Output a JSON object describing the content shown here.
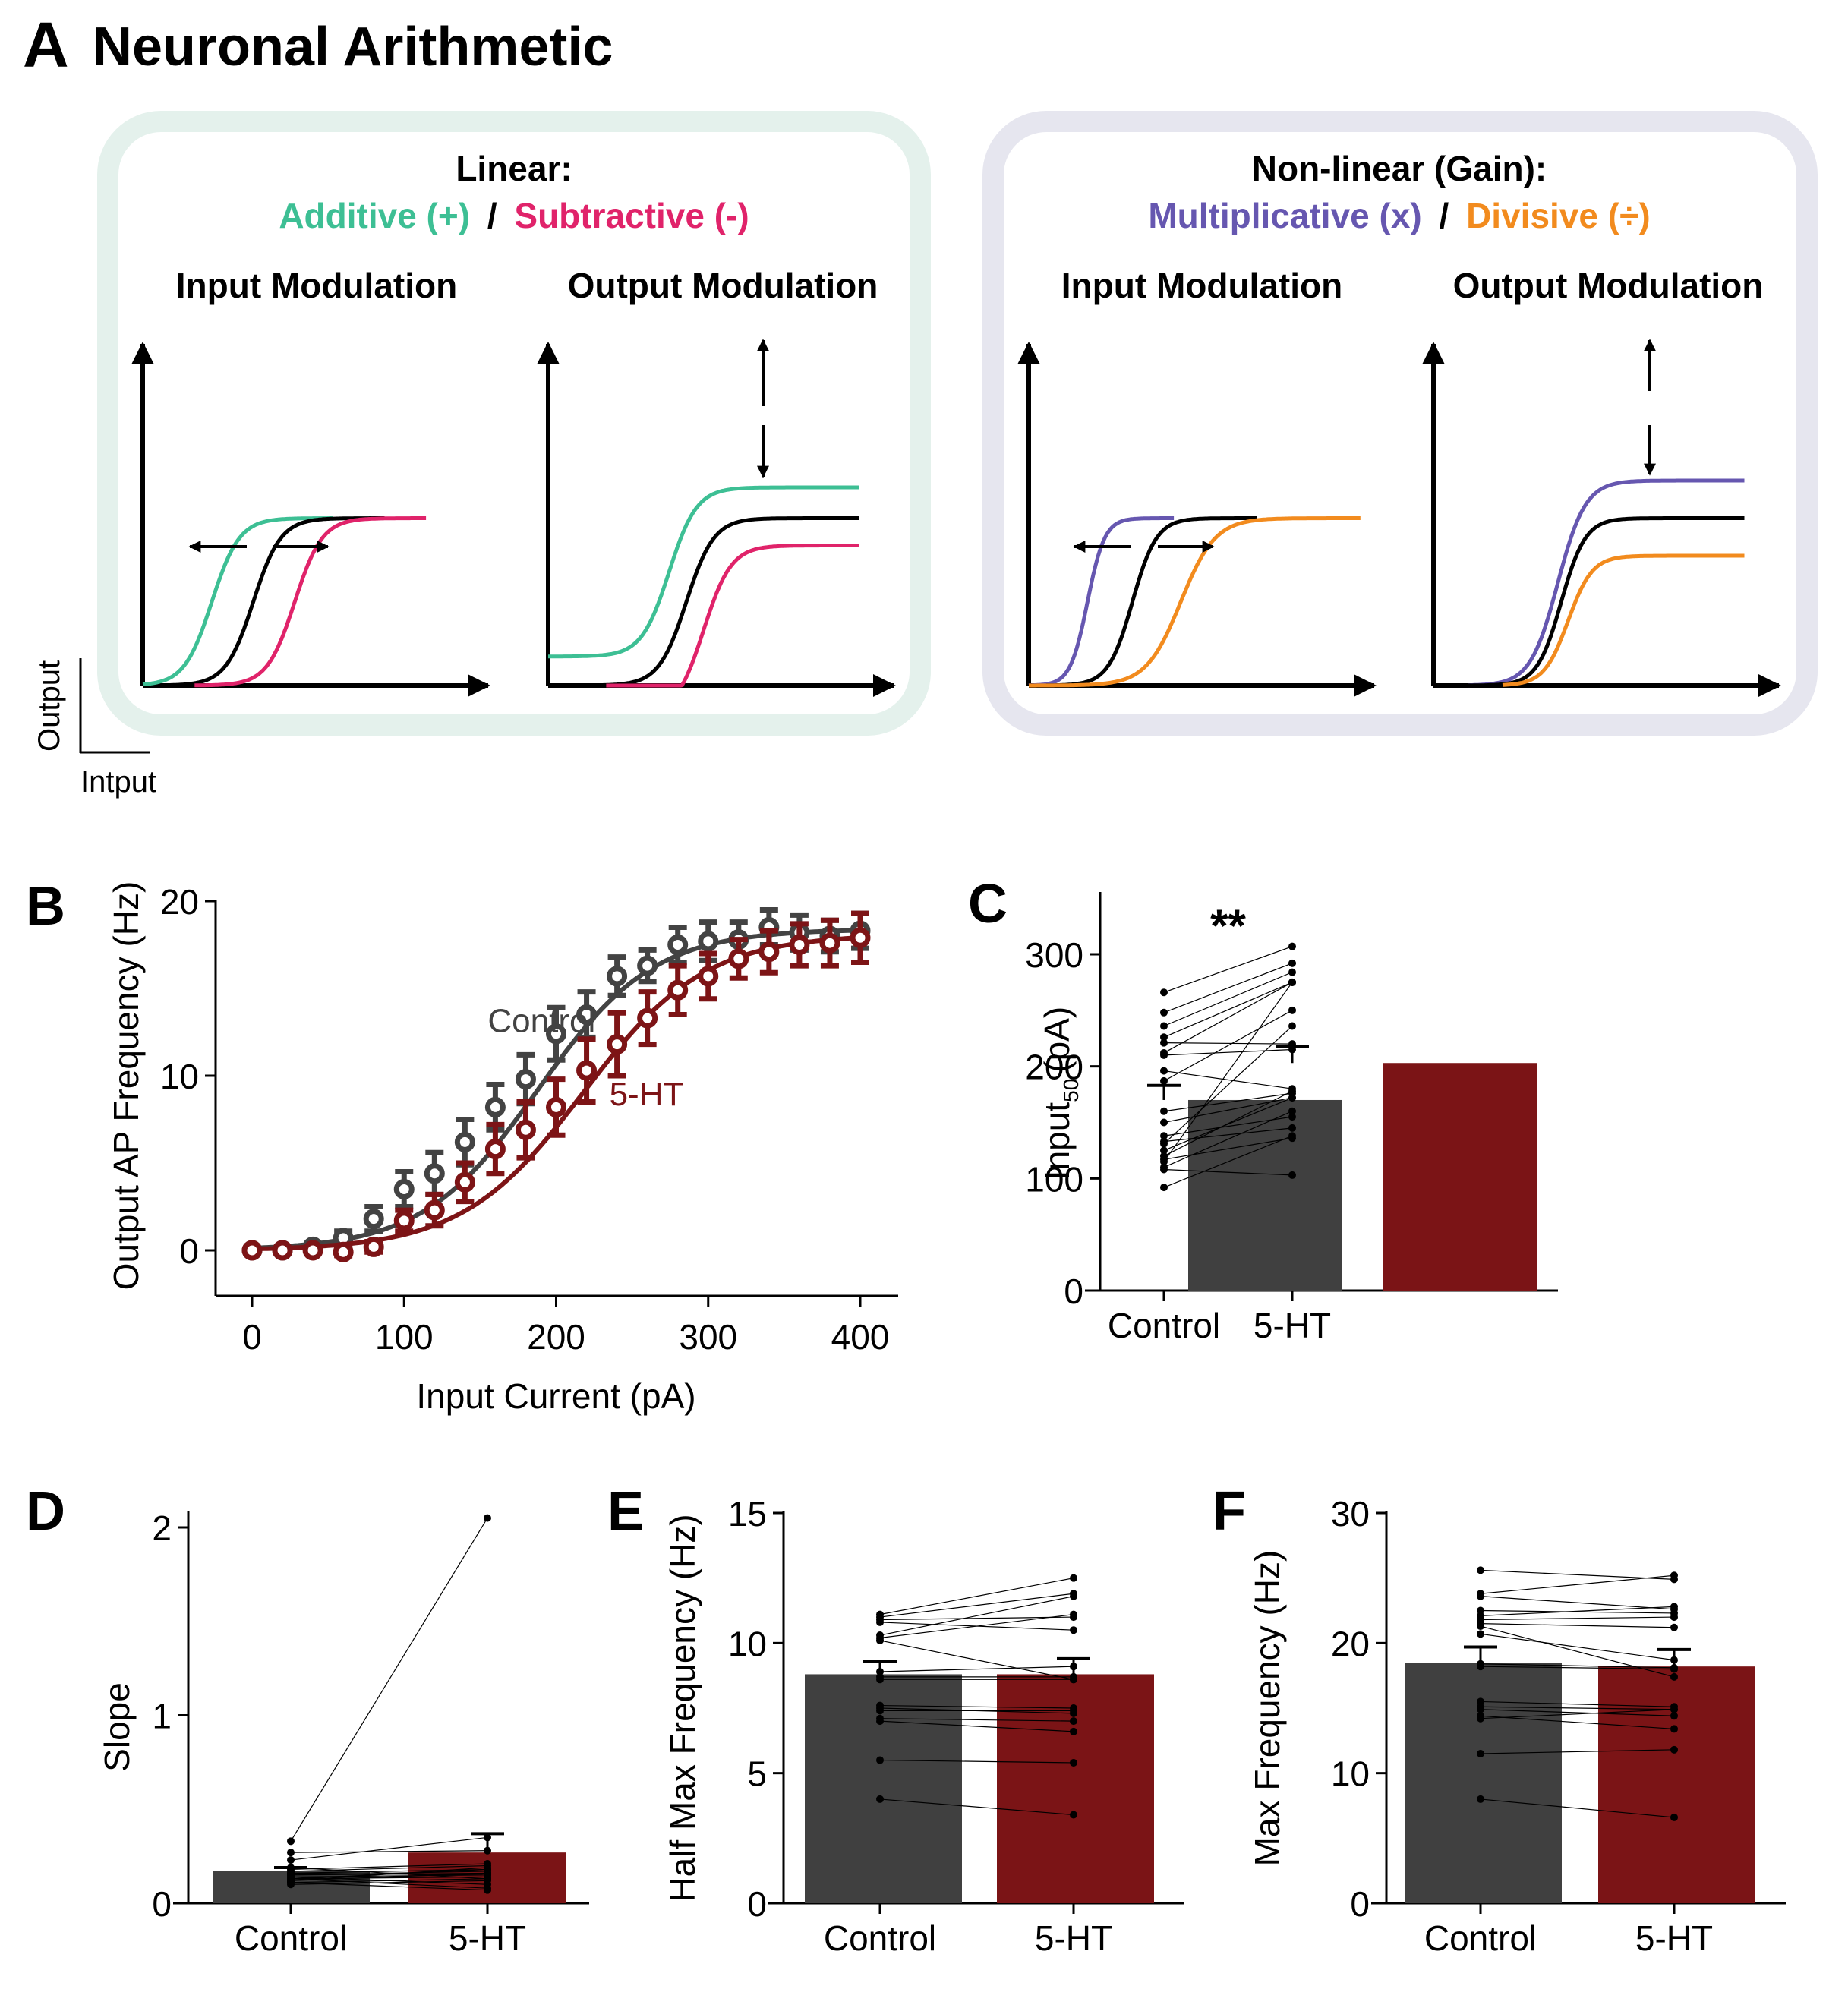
{
  "figure": {
    "panel_a": {
      "letter": "A",
      "title": "Neuronal Arithmetic",
      "scale_bar": {
        "ylabel": "Output",
        "xlabel": "Intput"
      },
      "linear_box": {
        "heading": "Linear:",
        "additive_label": "Additive (+)",
        "separator": "/",
        "subtractive_label": "Subtractive (-)",
        "input_title": "Input Modulation",
        "output_title": "Output Modulation",
        "colors": {
          "additive": "#3dbf94",
          "subtractive": "#e0236a",
          "baseline": "#000000",
          "box": "#e4f1ec"
        }
      },
      "gain_box": {
        "heading": "Non-linear (Gain):",
        "multiplicative_label": "Multiplicative (x)",
        "separator": "/",
        "divisive_label": "Divisive (÷)",
        "input_title": "Input Modulation",
        "output_title": "Output Modulation",
        "colors": {
          "multiplicative": "#6657b0",
          "divisive": "#f28b1e",
          "baseline": "#000000",
          "box": "#e6e6ef"
        }
      }
    }
  },
  "chart_data": [
    {
      "panel": "B",
      "type": "line",
      "title": "",
      "xlabel": "Input Current (pA)",
      "ylabel": "Output AP Frequency (Hz)",
      "xlim": [
        -20,
        425
      ],
      "ylim": [
        -2,
        20
      ],
      "xticks": [
        0,
        100,
        200,
        300,
        400
      ],
      "yticks": [
        0,
        10,
        20
      ],
      "grid": false,
      "legend": "inline labels",
      "x": [
        0,
        20,
        40,
        60,
        80,
        100,
        120,
        140,
        160,
        180,
        200,
        220,
        240,
        260,
        280,
        300,
        320,
        340,
        360,
        380,
        400
      ],
      "series": [
        {
          "name": "Control",
          "color": "#434343",
          "values": [
            0,
            0,
            0.2,
            0.7,
            1.8,
            3.5,
            4.4,
            6.2,
            8.2,
            9.8,
            12.4,
            13.5,
            15.7,
            16.3,
            17.5,
            17.7,
            17.8,
            18.5,
            18.2,
            18.0,
            18.3
          ],
          "errors": [
            0.1,
            0.1,
            0.2,
            0.4,
            0.7,
            1.0,
            1.2,
            1.3,
            1.3,
            1.4,
            1.5,
            1.3,
            1.1,
            0.9,
            1.0,
            1.1,
            1.0,
            1.0,
            1.0,
            0.9,
            1.0
          ],
          "label_position": {
            "x": 155,
            "y": 12.5
          }
        },
        {
          "name": "5-HT",
          "color": "#7d1416",
          "values": [
            0,
            0,
            0,
            -0.1,
            0.2,
            1.7,
            2.3,
            3.9,
            5.8,
            6.9,
            8.2,
            10.3,
            11.8,
            13.3,
            14.9,
            15.7,
            16.7,
            17.1,
            17.5,
            17.6,
            17.9
          ],
          "errors": [
            0.1,
            0.1,
            0.1,
            0.2,
            0.3,
            0.6,
            0.9,
            1.1,
            1.4,
            1.6,
            1.6,
            1.8,
            1.8,
            1.5,
            1.4,
            1.3,
            1.1,
            1.2,
            1.2,
            1.3,
            1.4
          ],
          "label_position": {
            "x": 235,
            "y": 8.3
          }
        }
      ],
      "fit": {
        "Control": {
          "max": 18.4,
          "x50": 188,
          "slope": 38
        },
        "5-HT": {
          "max": 18.1,
          "x50": 218,
          "slope": 40
        }
      }
    },
    {
      "panel": "C",
      "type": "bar",
      "ylabel": "Input50 (pA)",
      "ylabel_main": "Input",
      "ylabel_sub": "50",
      "ylabel_unit": "(pA)",
      "ylim": [
        0,
        350
      ],
      "yticks": [
        0,
        100,
        200,
        300
      ],
      "categories": [
        "Control",
        "5-HT"
      ],
      "values": [
        170,
        203
      ],
      "errors": [
        13,
        15
      ],
      "significance": "**",
      "pairs": [
        [
          266,
          307
        ],
        [
          248,
          292
        ],
        [
          236,
          284
        ],
        [
          226,
          275
        ],
        [
          221,
          220
        ],
        [
          212,
          275
        ],
        [
          210,
          215
        ],
        [
          196,
          180
        ],
        [
          187,
          250
        ],
        [
          160,
          176
        ],
        [
          150,
          172
        ],
        [
          138,
          155
        ],
        [
          133,
          145
        ],
        [
          131,
          236
        ],
        [
          117,
          136
        ],
        [
          115,
          275
        ],
        [
          110,
          160
        ],
        [
          108,
          103
        ],
        [
          92,
          138
        ],
        [
          120,
          178
        ],
        [
          125,
          172
        ]
      ]
    },
    {
      "panel": "D",
      "type": "bar",
      "ylabel": "Slope",
      "ylim": [
        0,
        2.1
      ],
      "yticks": [
        0,
        1,
        2
      ],
      "categories": [
        "Control",
        "5-HT"
      ],
      "values": [
        0.17,
        0.27
      ],
      "errors": [
        0.02,
        0.1
      ],
      "pairs": [
        [
          0.33,
          2.05
        ],
        [
          0.27,
          0.28
        ],
        [
          0.23,
          0.35
        ],
        [
          0.19,
          0.13
        ],
        [
          0.18,
          0.21
        ],
        [
          0.17,
          0.2
        ],
        [
          0.16,
          0.18
        ],
        [
          0.15,
          0.16
        ],
        [
          0.15,
          0.17
        ],
        [
          0.14,
          0.15
        ],
        [
          0.13,
          0.14
        ],
        [
          0.13,
          0.08
        ],
        [
          0.12,
          0.16
        ],
        [
          0.11,
          0.07
        ],
        [
          0.1,
          0.12
        ],
        [
          0.12,
          0.19
        ],
        [
          0.14,
          0.1
        ],
        [
          0.16,
          0.15
        ],
        [
          0.11,
          0.13
        ],
        [
          0.13,
          0.18
        ]
      ]
    },
    {
      "panel": "E",
      "type": "bar",
      "ylabel": "Half Max Frequency (Hz)",
      "ylim": [
        0,
        15
      ],
      "yticks": [
        0,
        5,
        10,
        15
      ],
      "categories": [
        "Control",
        "5-HT"
      ],
      "values": [
        8.8,
        8.8
      ],
      "errors": [
        0.5,
        0.6
      ],
      "pairs": [
        [
          11.1,
          12.5
        ],
        [
          11.0,
          11.9
        ],
        [
          10.9,
          11.0
        ],
        [
          10.8,
          10.5
        ],
        [
          10.3,
          11.8
        ],
        [
          10.2,
          11.1
        ],
        [
          10.1,
          8.6
        ],
        [
          8.9,
          9.1
        ],
        [
          8.7,
          8.7
        ],
        [
          8.6,
          8.6
        ],
        [
          7.6,
          7.5
        ],
        [
          7.5,
          7.3
        ],
        [
          7.4,
          7.4
        ],
        [
          7.0,
          6.6
        ],
        [
          7.1,
          7.0
        ],
        [
          5.5,
          5.4
        ],
        [
          4.0,
          3.4
        ]
      ]
    },
    {
      "panel": "F",
      "type": "bar",
      "ylabel": "Max Frequency (Hz)",
      "ylim": [
        0,
        30
      ],
      "yticks": [
        0,
        10,
        20,
        30
      ],
      "categories": [
        "Control",
        "5-HT"
      ],
      "values": [
        18.5,
        18.2
      ],
      "errors": [
        1.2,
        1.3
      ],
      "pairs": [
        [
          25.6,
          24.9
        ],
        [
          23.8,
          25.2
        ],
        [
          23.6,
          22.6
        ],
        [
          22.5,
          22.3
        ],
        [
          22.1,
          22.8
        ],
        [
          21.8,
          22.0
        ],
        [
          21.5,
          21.2
        ],
        [
          21.3,
          17.4
        ],
        [
          20.7,
          18.7
        ],
        [
          18.4,
          18.1
        ],
        [
          18.2,
          18.0
        ],
        [
          15.5,
          15.1
        ],
        [
          15.1,
          14.9
        ],
        [
          14.9,
          14.4
        ],
        [
          14.4,
          13.4
        ],
        [
          14.2,
          14.9
        ],
        [
          11.5,
          11.8
        ],
        [
          8.0,
          6.6
        ]
      ]
    }
  ],
  "colors": {
    "control": "#404040",
    "treatment": "#7b1416",
    "control_line": "#434343",
    "treatment_line": "#7d1416"
  }
}
